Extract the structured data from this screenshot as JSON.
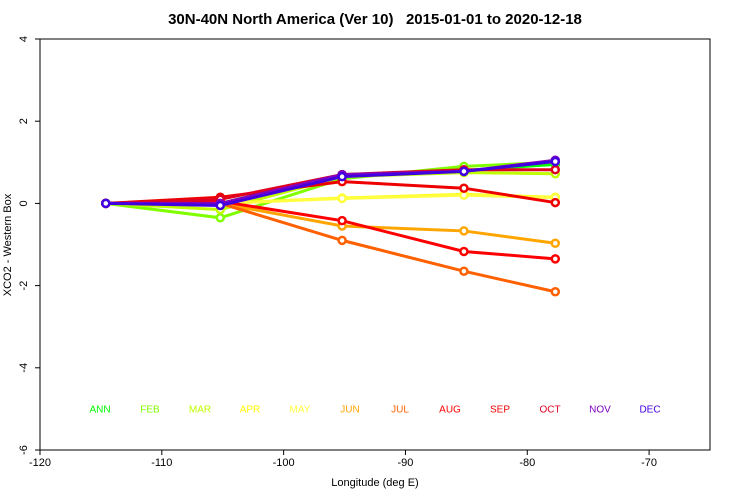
{
  "chart_data": {
    "type": "line",
    "title": "30N-40N North America (Ver 10)   2015-01-01 to 2020-12-18",
    "x_label": "Longitude (deg E)",
    "y_label": "XCO2 - Western Box",
    "xlim": [
      -120,
      -65
    ],
    "xticks": [
      -120,
      -110,
      -100,
      -90,
      -80,
      -70
    ],
    "ylim": [
      -6,
      4
    ],
    "yticks": [
      -6,
      -4,
      -2,
      0,
      2,
      4
    ],
    "grid": false,
    "x": [
      -114.6,
      -105.2,
      -95.2,
      -85.2,
      -77.7
    ],
    "series": [
      {
        "name": "ANN",
        "color": "#00ff00",
        "values": [
          0,
          0,
          0.7,
          0.8,
          0.95
        ]
      },
      {
        "name": "FEB",
        "color": "#80ff00",
        "values": [
          0,
          -0.35,
          0.6,
          0.9,
          1.0
        ]
      },
      {
        "name": "MAR",
        "color": "#c0ff00",
        "values": [
          0,
          -0.15,
          0.65,
          0.75,
          0.72
        ]
      },
      {
        "name": "APR",
        "color": "#ffff00",
        "values": [
          0,
          0,
          0.13,
          0.22,
          0.15
        ]
      },
      {
        "name": "MAY",
        "color": "#ffff40",
        "values": [
          0,
          0,
          0.12,
          0.2,
          0.14
        ]
      },
      {
        "name": "JUN",
        "color": "#ffa500",
        "values": [
          0,
          0,
          -0.55,
          -0.67,
          -0.97
        ]
      },
      {
        "name": "JUL",
        "color": "#ff6000",
        "values": [
          0,
          0,
          -0.9,
          -1.65,
          -2.15
        ]
      },
      {
        "name": "AUG",
        "color": "#ff0000",
        "values": [
          0,
          0.05,
          -0.42,
          -1.17,
          -1.35
        ]
      },
      {
        "name": "SEP",
        "color": "#ee0000",
        "values": [
          0,
          0.15,
          0.53,
          0.37,
          0.02
        ]
      },
      {
        "name": "OCT",
        "color": "#e00020",
        "values": [
          0,
          0.1,
          0.7,
          0.82,
          0.82
        ]
      },
      {
        "name": "NOV",
        "color": "#8000c0",
        "values": [
          0,
          0,
          0.7,
          0.78,
          1.05
        ]
      },
      {
        "name": "DEC",
        "color": "#4000e0",
        "values": [
          0,
          -0.05,
          0.65,
          0.78,
          1.02
        ]
      }
    ]
  }
}
